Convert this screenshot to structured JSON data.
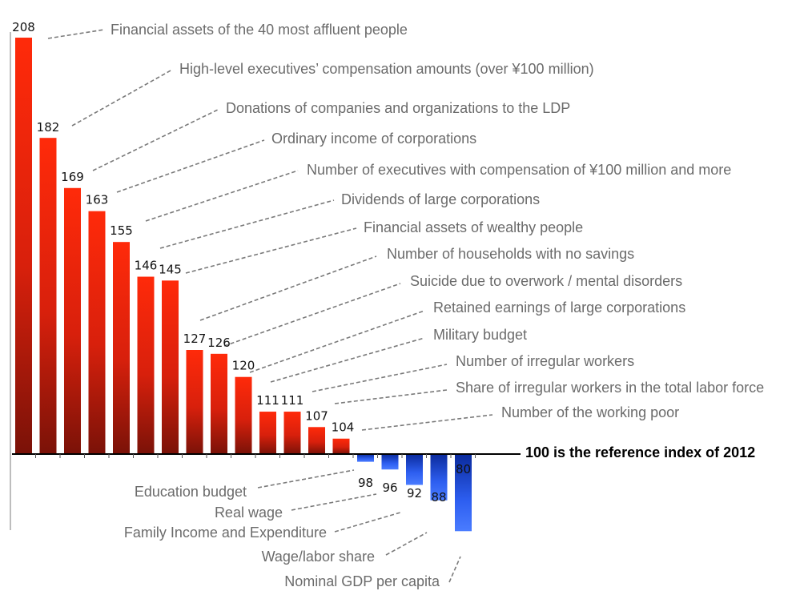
{
  "chart_data": {
    "type": "bar",
    "reference_value": 100,
    "reference_label": "100 is the reference index of 2012",
    "categories": [
      "Financial assets of the 40 most affluent people",
      "High-level executives’ compensation amounts (over ¥100 million)",
      "Donations of companies and organizations to the LDP",
      "Ordinary income of corporations",
      "Number of executives with compensation of ¥100 million and more",
      "Dividends of large corporations",
      "Financial assets of wealthy people",
      "Number of households with no savings",
      "Suicide due to overwork / mental disorders",
      "Retained earnings of large corporations",
      "Military budget",
      "Number of irregular workers",
      "Share of irregular workers in the total labor force",
      "Number of the working poor",
      "Education budget",
      "Real wage",
      "Family Income and Expenditure",
      "Wage/labor share",
      "Nominal GDP per capita"
    ],
    "values": [
      208,
      182,
      169,
      163,
      155,
      146,
      145,
      127,
      126,
      120,
      111,
      111,
      107,
      104,
      98,
      96,
      92,
      88,
      80
    ],
    "value_labels": [
      "208",
      "182",
      "169",
      "163",
      "155",
      "146",
      "145",
      "127",
      "126",
      "120",
      "111",
      "111",
      "107",
      "104",
      "98",
      "96",
      "92",
      "88",
      "80"
    ],
    "colors": {
      "above_reference": "#e8200c",
      "above_reference_dark": "#7a1208",
      "below_reference": "#3a6dff",
      "below_reference_dark": "#0a2a9c",
      "leader_line": "#7a7a7a",
      "label_text": "#6b6b6b"
    },
    "xlabel": "",
    "ylabel": "",
    "grid": false,
    "legend": "none"
  }
}
